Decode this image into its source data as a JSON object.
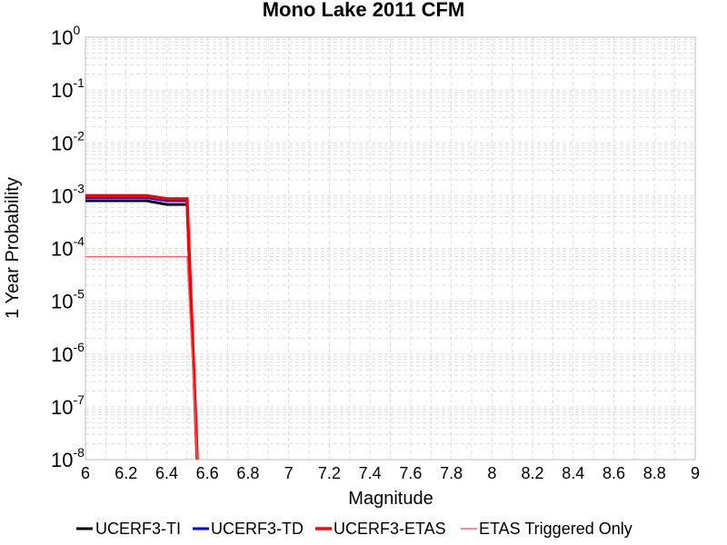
{
  "chart_data": {
    "type": "line",
    "title": "Mono Lake 2011 CFM",
    "xlabel": "Magnitude",
    "ylabel": "1 Year Probability",
    "xlim": [
      6,
      9
    ],
    "ylim": [
      1e-08,
      1
    ],
    "yscale": "log",
    "grid": true,
    "legend_position": "bottom",
    "xticks": [
      "6",
      "6.2",
      "6.4",
      "6.6",
      "6.8",
      "7",
      "7.2",
      "7.4",
      "7.6",
      "7.8",
      "8",
      "8.2",
      "8.4",
      "8.6",
      "8.8",
      "9"
    ],
    "yticks": [
      {
        "base": "10",
        "exp": "0"
      },
      {
        "base": "10",
        "exp": "-1"
      },
      {
        "base": "10",
        "exp": "-2"
      },
      {
        "base": "10",
        "exp": "-3"
      },
      {
        "base": "10",
        "exp": "-4"
      },
      {
        "base": "10",
        "exp": "-5"
      },
      {
        "base": "10",
        "exp": "-6"
      },
      {
        "base": "10",
        "exp": "-7"
      },
      {
        "base": "10",
        "exp": "-8"
      }
    ],
    "series": [
      {
        "name": "UCERF3-TI",
        "color": "#000000",
        "width": 3,
        "x": [
          6.0,
          6.1,
          6.2,
          6.3,
          6.4,
          6.5,
          6.55
        ],
        "y": [
          0.0008,
          0.0008,
          0.0008,
          0.0008,
          0.00068,
          0.00068,
          1e-08
        ]
      },
      {
        "name": "UCERF3-TD",
        "color": "#0000ff",
        "width": 3,
        "x": [
          6.0,
          6.1,
          6.2,
          6.3,
          6.4,
          6.5,
          6.55
        ],
        "y": [
          0.00092,
          0.00092,
          0.00092,
          0.00092,
          0.0008,
          0.0008,
          1e-08
        ]
      },
      {
        "name": "UCERF3-ETAS",
        "color": "#ff0000",
        "width": 3.5,
        "x": [
          6.0,
          6.1,
          6.2,
          6.3,
          6.4,
          6.5,
          6.55
        ],
        "y": [
          0.001,
          0.001,
          0.001,
          0.001,
          0.00087,
          0.00087,
          1e-08
        ]
      },
      {
        "name": "ETAS Triggered Only",
        "color": "#ff6060",
        "width": 1.2,
        "x": [
          6.0,
          6.1,
          6.2,
          6.3,
          6.4,
          6.5,
          6.55
        ],
        "y": [
          7e-05,
          7e-05,
          7e-05,
          7e-05,
          7e-05,
          7e-05,
          1e-08
        ]
      }
    ]
  }
}
